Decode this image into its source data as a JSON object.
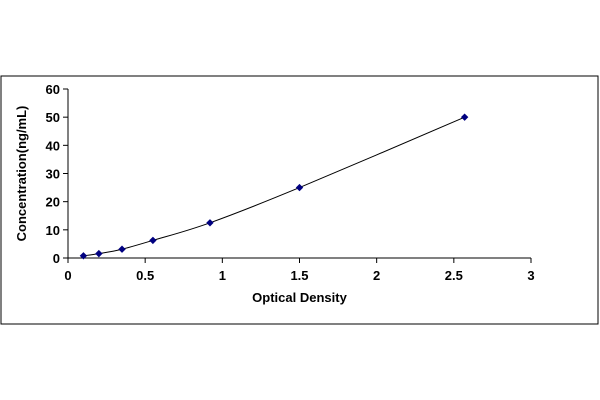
{
  "chart_data": {
    "type": "scatter",
    "xlabel": "Optical Density",
    "ylabel": "Concentration(ng/mL)",
    "xlim": [
      0,
      3
    ],
    "ylim": [
      0,
      60
    ],
    "xticks": [
      0,
      0.5,
      1,
      1.5,
      2,
      2.5,
      3
    ],
    "xtick_labels": [
      "0",
      "0.5",
      "1",
      "1.5",
      "2",
      "2.5",
      "3"
    ],
    "yticks": [
      0,
      10,
      20,
      30,
      40,
      50,
      60
    ],
    "ytick_labels": [
      "0",
      "10",
      "20",
      "30",
      "40",
      "50",
      "60"
    ],
    "grid": false,
    "legend": "none",
    "trendline": "smooth curve through points",
    "marker_color": "#000080",
    "line_color": "#000000",
    "series": [
      {
        "x": [
          0.1,
          0.2,
          0.35,
          0.55,
          0.92,
          1.5,
          2.57
        ],
        "y": [
          0.78,
          1.56,
          3.12,
          6.25,
          12.5,
          25,
          50
        ]
      }
    ]
  }
}
